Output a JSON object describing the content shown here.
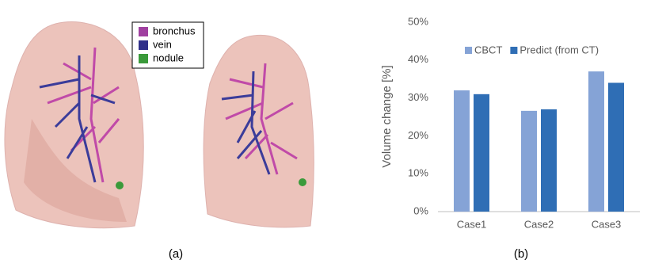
{
  "panel_a": {
    "legend": [
      "bronchus",
      "vein",
      "nodule"
    ],
    "legend_colors": [
      "#a040a0",
      "#30308a",
      "#3a9a3a"
    ],
    "caption": "(a)"
  },
  "chart_data": {
    "type": "bar",
    "caption": "(b)",
    "y_label": "Volume change [%]",
    "categories": [
      "Case1",
      "Case2",
      "Case3"
    ],
    "series": [
      {
        "name": "CBCT",
        "color": "#85a3d6",
        "values": [
          32,
          26.6,
          37
        ]
      },
      {
        "name": "Predict (from CT)",
        "color": "#2f6eb5",
        "values": [
          31,
          27,
          34
        ]
      }
    ],
    "ylim": [
      0,
      50
    ],
    "yticks": [
      {
        "value": 0,
        "label": "0%"
      },
      {
        "value": 10,
        "label": "10%"
      },
      {
        "value": 20,
        "label": "20%"
      },
      {
        "value": 30,
        "label": "30%"
      },
      {
        "value": 40,
        "label": "40%"
      },
      {
        "value": 50,
        "label": "50%"
      }
    ],
    "grid": false,
    "legend_position": "top"
  }
}
